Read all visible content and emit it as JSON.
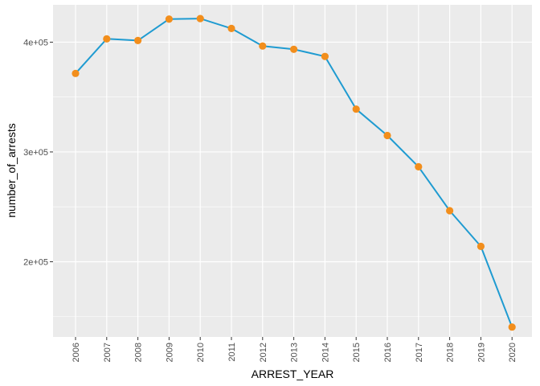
{
  "chart_data": {
    "type": "line",
    "title": "",
    "xlabel": "ARREST_YEAR",
    "ylabel": "number_of_arrests",
    "x": [
      "2006",
      "2007",
      "2008",
      "2009",
      "2010",
      "2011",
      "2012",
      "2013",
      "2014",
      "2015",
      "2016",
      "2017",
      "2018",
      "2019",
      "2020"
    ],
    "series": [
      {
        "values": [
          371500,
          403000,
          401500,
          421000,
          421500,
          412500,
          396500,
          393500,
          387000,
          339000,
          315000,
          286500,
          246500,
          214000,
          140500
        ],
        "line_color": "#1f9bd1",
        "marker_color": "#f28e1c"
      }
    ],
    "ylim": [
      131500,
      434000
    ],
    "yticks": [
      200000,
      300000,
      400000
    ],
    "ytick_labels": [
      "2e+05",
      "3e+05",
      "4e+05"
    ],
    "grid": true,
    "legend": "none",
    "colors": {
      "panel": "#ebebeb",
      "grid": "#ffffff"
    }
  }
}
